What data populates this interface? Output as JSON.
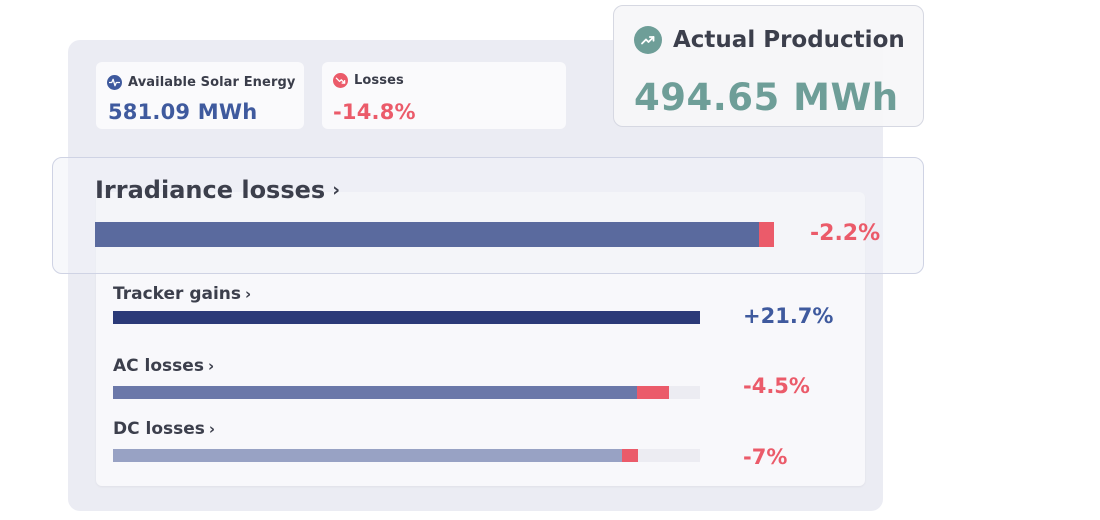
{
  "colors": {
    "accent_blue": "#3f5a9e",
    "loss_red": "#eb5b6a",
    "production_teal": "#6e9e98",
    "bar_irradiance": "#5a6a9e",
    "bar_tracker": "#2b3a78",
    "bar_ac": "#6b78a9",
    "bar_dc": "#98a2c4"
  },
  "kpis": {
    "available": {
      "label": "Available Solar Energy",
      "value": "581.09 MWh",
      "icon": "activity-pulse-icon"
    },
    "losses": {
      "label": "Losses",
      "value": "-14.8%",
      "icon": "trend-down-icon"
    }
  },
  "production": {
    "label": "Actual Production",
    "value": "494.65 MWh",
    "icon": "trend-up-icon"
  },
  "rows": {
    "irradiance": {
      "label": "Irradiance losses",
      "chevron": "›",
      "value": "-2.2%",
      "fill_fraction": 0.978
    },
    "tracker": {
      "label": "Tracker gains",
      "chevron": "›",
      "value": "+21.7%",
      "fill_fraction": 1.0
    },
    "ac": {
      "label": "AC losses",
      "chevron": "›",
      "value": "-4.5%",
      "base_fraction": 0.893,
      "loss_fraction": 0.055
    },
    "dc": {
      "label": "DC losses",
      "chevron": "›",
      "value": "-7%",
      "base_fraction": 0.867,
      "loss_fraction": 0.028
    }
  }
}
